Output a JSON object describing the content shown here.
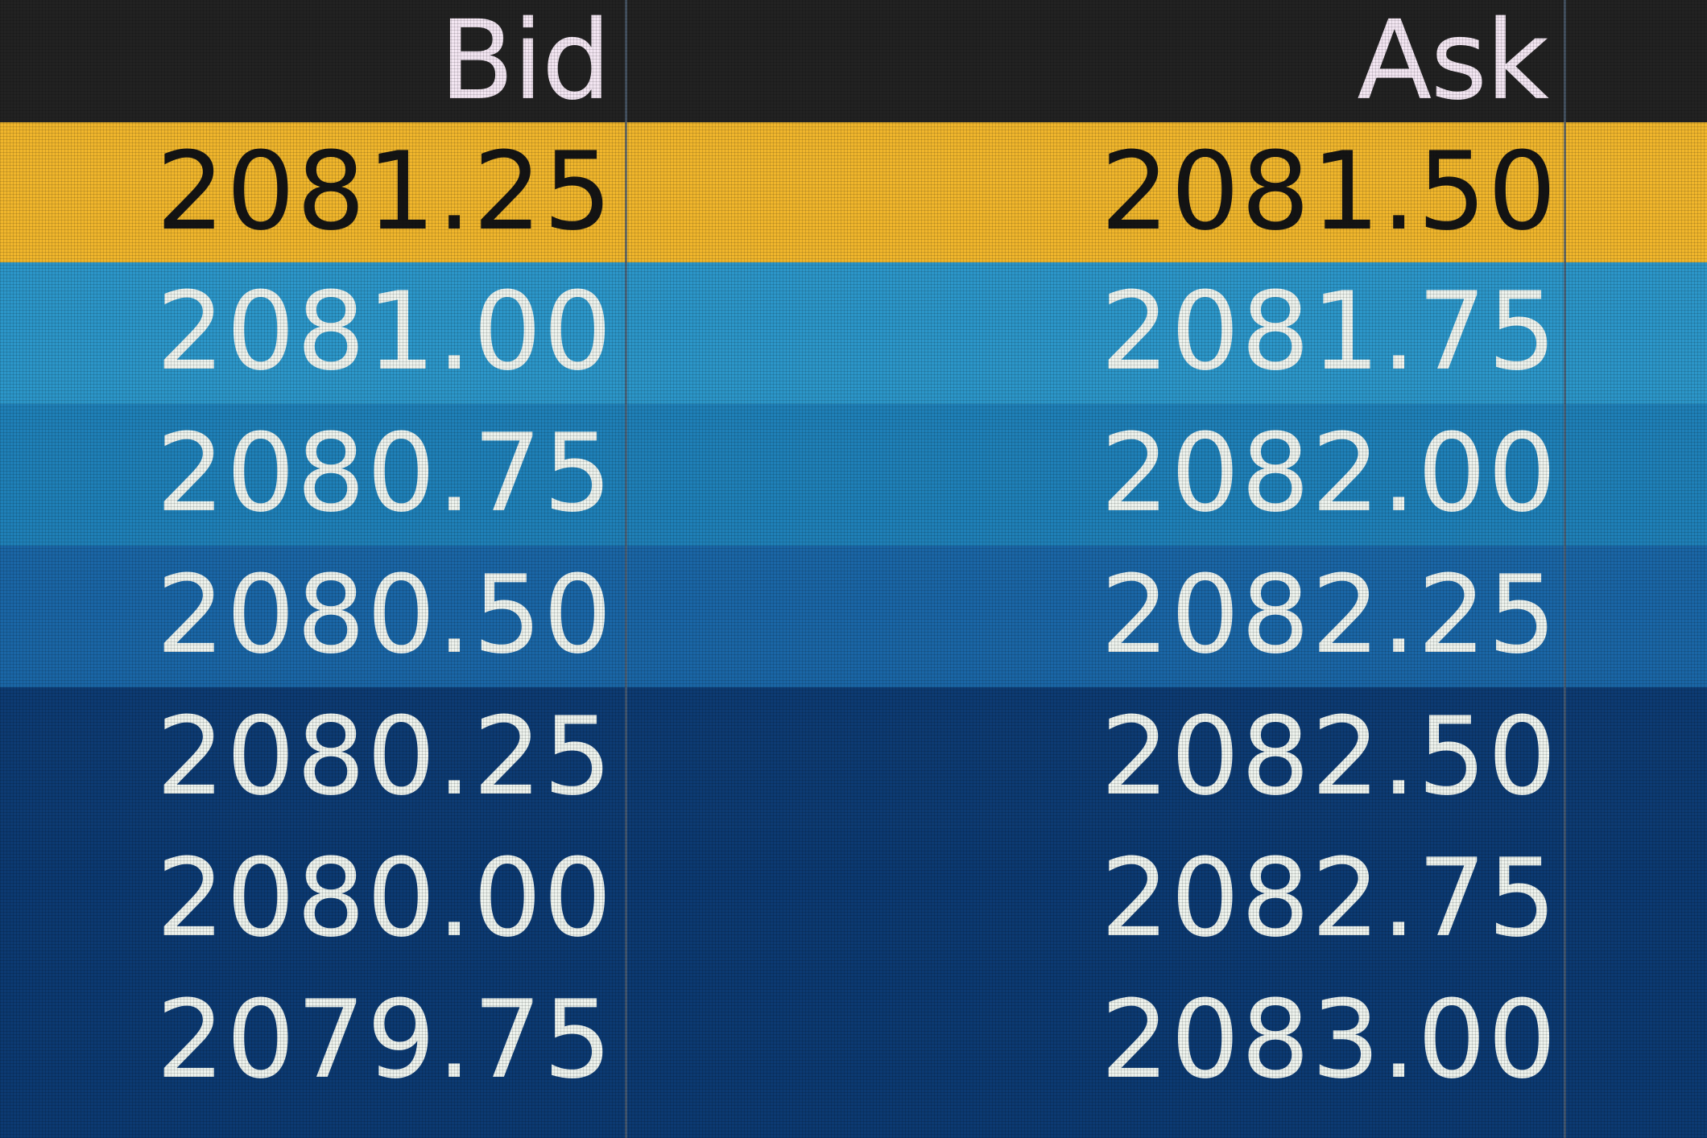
{
  "header": {
    "bid_label": "Bid",
    "ask_label": "Ask"
  },
  "colors": {
    "header_bg": "#222222",
    "best_row_bg": "#f0b62c",
    "level_bg": [
      "#2c96c9",
      "#1f80b8",
      "#1a66a6",
      "#0d3b73",
      "#0c3a72",
      "#0c3a72"
    ]
  },
  "rows": [
    {
      "bid": "2081.25",
      "ask": "2081.50"
    },
    {
      "bid": "2081.00",
      "ask": "2081.75"
    },
    {
      "bid": "2080.75",
      "ask": "2082.00"
    },
    {
      "bid": "2080.50",
      "ask": "2082.25"
    },
    {
      "bid": "2080.25",
      "ask": "2082.50"
    },
    {
      "bid": "2080.00",
      "ask": "2082.75"
    },
    {
      "bid": "2079.75",
      "ask": "2083.00"
    }
  ]
}
